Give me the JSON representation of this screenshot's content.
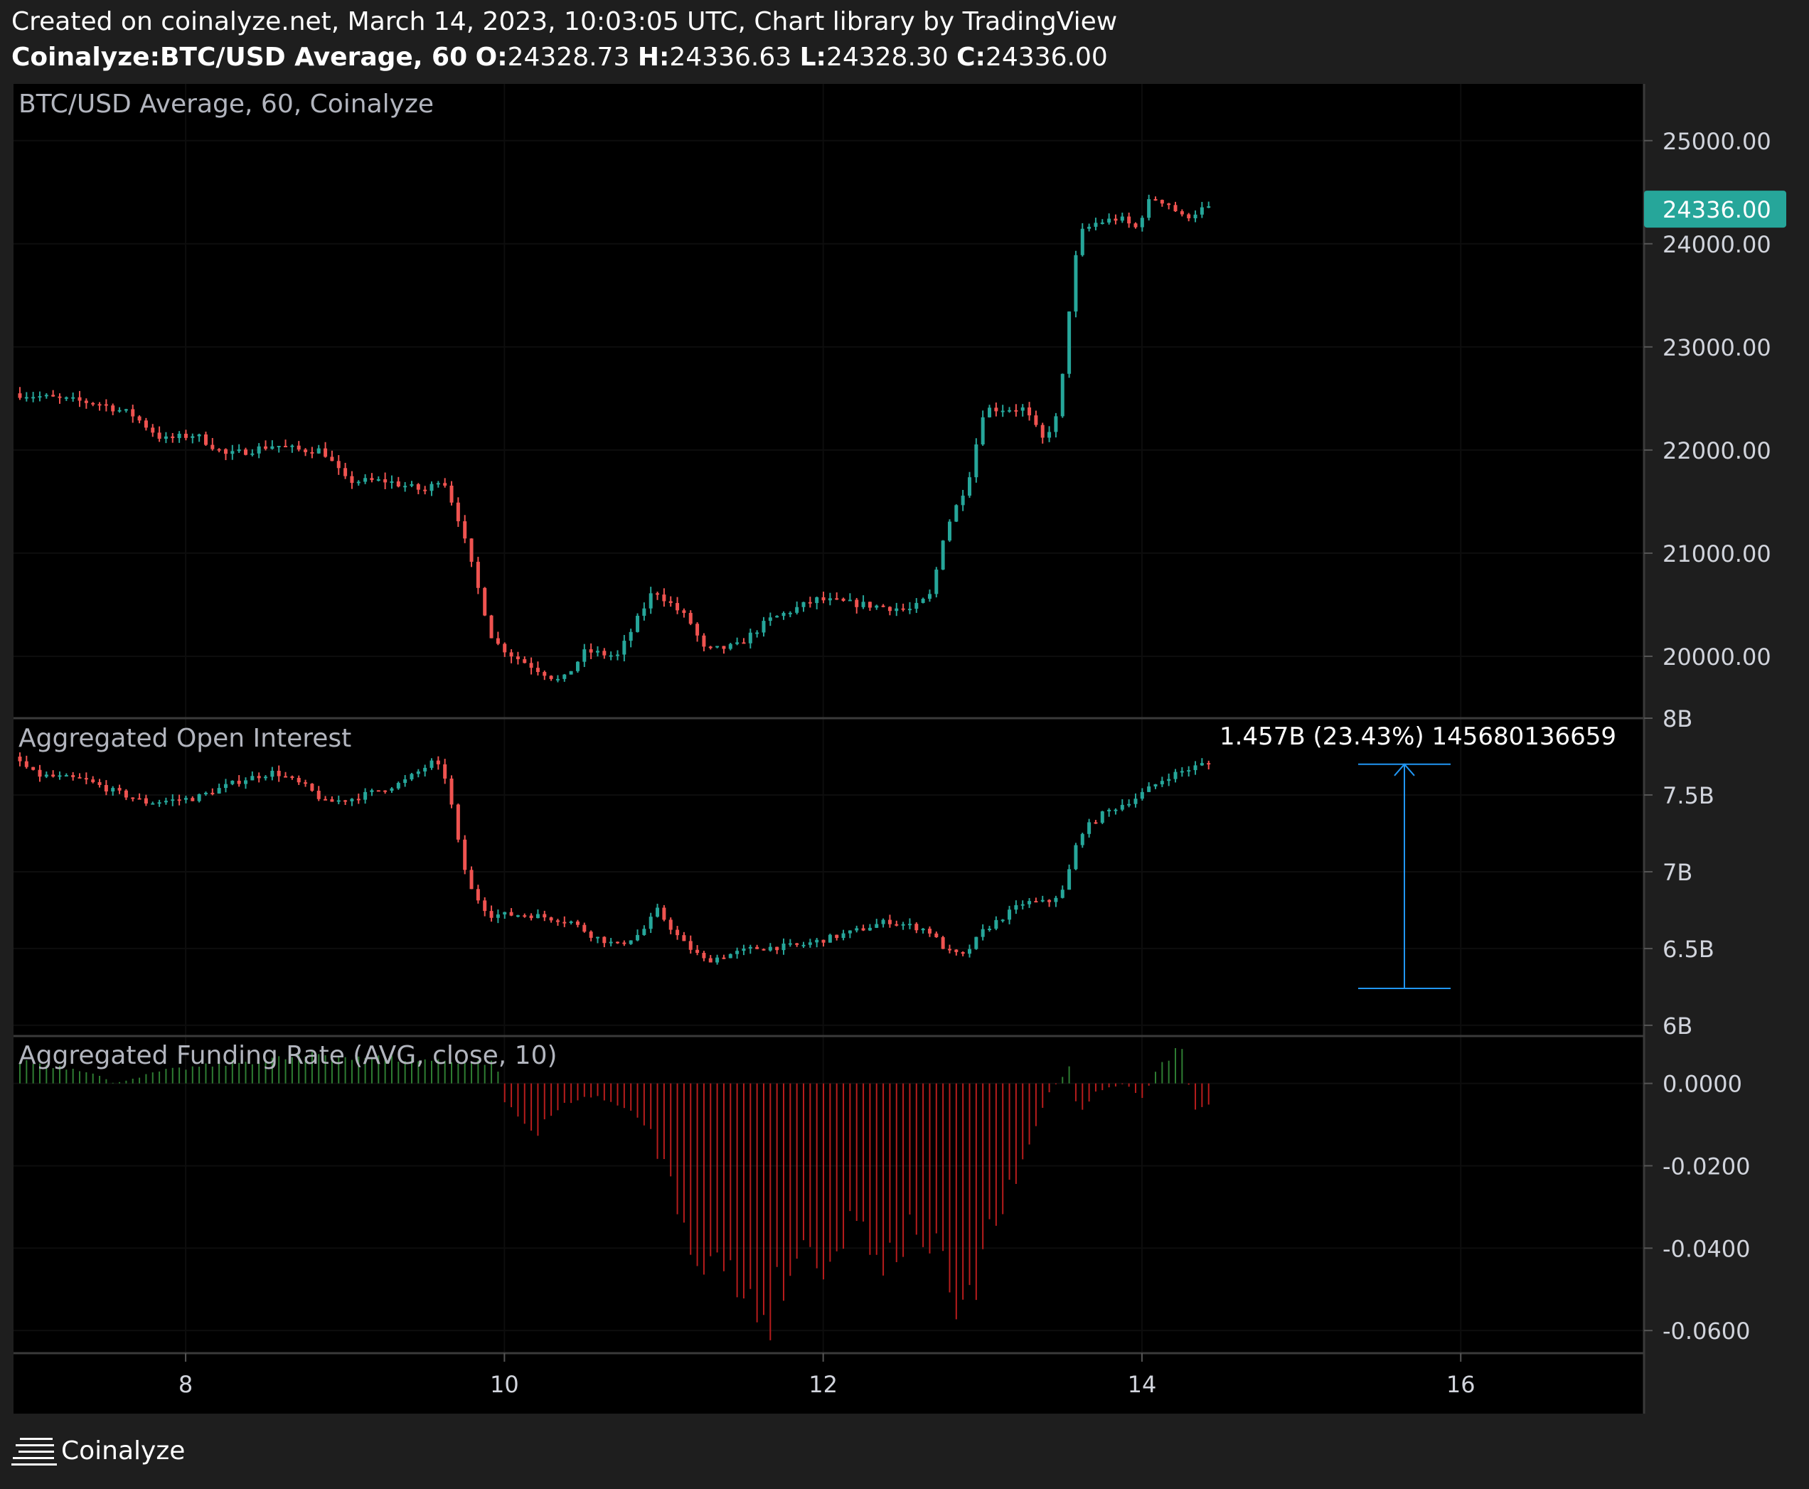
{
  "header": {
    "created": "Created on coinalyze.net, March 14, 2023, 10:03:05 UTC, Chart library by TradingView",
    "symbol": "Coinalyze:BTC/USD Average, 60",
    "o_label": "O:",
    "o_value": "24328.73",
    "h_label": "H:",
    "h_value": "24336.63",
    "l_label": "L:",
    "l_value": "24328.30",
    "c_label": "C:",
    "c_value": "24336.00"
  },
  "footer": {
    "brand": "Coinalyze",
    "icon": "coinalyze-menu-icon"
  },
  "colors": {
    "up": "#26a69a",
    "down": "#ef5350",
    "fund_pos": "#2e7d32",
    "fund_neg": "#b71c1c",
    "measure": "#2196f3",
    "price_tag": "#26a69a"
  },
  "chart_data": [
    {
      "type": "candlestick",
      "title": "BTC/USD Average, 60, Coinalyze",
      "ylim": [
        19400,
        25550
      ],
      "yticks": [
        "25000.00",
        "24000.00",
        "23000.00",
        "22000.00",
        "21000.00",
        "20000.00"
      ],
      "last_price": "24336.00",
      "anchors": [
        [
          6.96,
          22550
        ],
        [
          7.5,
          22450
        ],
        [
          7.7,
          22350
        ],
        [
          7.9,
          22100
        ],
        [
          8.1,
          22150
        ],
        [
          8.3,
          21950
        ],
        [
          8.6,
          22050
        ],
        [
          8.75,
          22000
        ],
        [
          8.9,
          22000
        ],
        [
          9.05,
          21700
        ],
        [
          9.3,
          21700
        ],
        [
          9.55,
          21600
        ],
        [
          9.65,
          21750
        ],
        [
          9.75,
          21350
        ],
        [
          9.85,
          20800
        ],
        [
          9.97,
          20150
        ],
        [
          10.1,
          20000
        ],
        [
          10.4,
          19750
        ],
        [
          10.55,
          20050
        ],
        [
          10.75,
          20000
        ],
        [
          10.98,
          20650
        ],
        [
          11.2,
          20350
        ],
        [
          11.3,
          20050
        ],
        [
          11.5,
          20100
        ],
        [
          11.7,
          20350
        ],
        [
          12.0,
          20550
        ],
        [
          12.3,
          20500
        ],
        [
          12.6,
          20450
        ],
        [
          12.72,
          20600
        ],
        [
          12.8,
          21200
        ],
        [
          12.95,
          21700
        ],
        [
          13.05,
          22400
        ],
        [
          13.3,
          22400
        ],
        [
          13.42,
          22100
        ],
        [
          13.52,
          22350
        ],
        [
          13.6,
          23600
        ],
        [
          13.65,
          24100
        ],
        [
          13.75,
          24200
        ],
        [
          13.9,
          24250
        ],
        [
          14.0,
          24150
        ],
        [
          14.1,
          24450
        ],
        [
          14.2,
          24400
        ],
        [
          14.3,
          24250
        ],
        [
          14.42,
          24336
        ]
      ]
    },
    {
      "type": "candlestick",
      "title": "Aggregated Open Interest",
      "unit": "B",
      "ylim": [
        5.93,
        8.0
      ],
      "yticks": [
        "8B",
        "7.5B",
        "7B",
        "6.5B",
        "6B"
      ],
      "anchors": [
        [
          6.96,
          7.75
        ],
        [
          7.1,
          7.63
        ],
        [
          7.4,
          7.6
        ],
        [
          7.6,
          7.52
        ],
        [
          7.8,
          7.45
        ],
        [
          8.1,
          7.48
        ],
        [
          8.4,
          7.6
        ],
        [
          8.6,
          7.65
        ],
        [
          8.8,
          7.55
        ],
        [
          8.92,
          7.45
        ],
        [
          9.1,
          7.48
        ],
        [
          9.4,
          7.58
        ],
        [
          9.6,
          7.72
        ],
        [
          9.68,
          7.6
        ],
        [
          9.75,
          7.2
        ],
        [
          9.82,
          6.9
        ],
        [
          9.95,
          6.72
        ],
        [
          10.2,
          6.72
        ],
        [
          10.45,
          6.68
        ],
        [
          10.6,
          6.58
        ],
        [
          10.75,
          6.52
        ],
        [
          10.9,
          6.6
        ],
        [
          11.0,
          6.75
        ],
        [
          11.15,
          6.55
        ],
        [
          11.3,
          6.42
        ],
        [
          11.6,
          6.5
        ],
        [
          11.9,
          6.52
        ],
        [
          12.2,
          6.6
        ],
        [
          12.45,
          6.68
        ],
        [
          12.7,
          6.62
        ],
        [
          12.82,
          6.48
        ],
        [
          12.92,
          6.45
        ],
        [
          13.05,
          6.62
        ],
        [
          13.3,
          6.8
        ],
        [
          13.45,
          6.8
        ],
        [
          13.55,
          6.88
        ],
        [
          13.65,
          7.25
        ],
        [
          13.8,
          7.38
        ],
        [
          14.0,
          7.48
        ],
        [
          14.2,
          7.62
        ],
        [
          14.42,
          7.7
        ]
      ],
      "measure": {
        "label": "1.457B (23.43%) 145680136659",
        "from": 6.24,
        "to": 7.7
      }
    },
    {
      "type": "bar",
      "title": "Aggregated Funding Rate (AVG, close, 10)",
      "ylim": [
        -0.0655,
        0.0115
      ],
      "yticks": [
        "0.0000",
        "-0.0200",
        "-0.0400",
        "-0.0600"
      ],
      "anchors": [
        [
          6.96,
          0.0055
        ],
        [
          7.4,
          0.003
        ],
        [
          7.55,
          0.0
        ],
        [
          7.85,
          0.003
        ],
        [
          8.3,
          0.005
        ],
        [
          8.9,
          0.007
        ],
        [
          9.3,
          0.006
        ],
        [
          9.95,
          0.005
        ],
        [
          10.0,
          -0.004
        ],
        [
          10.2,
          -0.013
        ],
        [
          10.35,
          -0.005
        ],
        [
          10.6,
          -0.003
        ],
        [
          10.9,
          -0.01
        ],
        [
          11.05,
          -0.025
        ],
        [
          11.2,
          -0.04
        ],
        [
          11.45,
          -0.048
        ],
        [
          11.65,
          -0.056
        ],
        [
          11.85,
          -0.04
        ],
        [
          12.05,
          -0.042
        ],
        [
          12.2,
          -0.032
        ],
        [
          12.4,
          -0.043
        ],
        [
          12.6,
          -0.034
        ],
        [
          12.78,
          -0.048
        ],
        [
          12.88,
          -0.062
        ],
        [
          13.0,
          -0.04
        ],
        [
          13.2,
          -0.025
        ],
        [
          13.3,
          -0.015
        ],
        [
          13.4,
          -0.003
        ],
        [
          13.55,
          0.004
        ],
        [
          13.6,
          -0.008
        ],
        [
          13.7,
          -0.002
        ],
        [
          13.9,
          0.0
        ],
        [
          14.0,
          -0.004
        ],
        [
          14.1,
          0.004
        ],
        [
          14.25,
          0.009
        ],
        [
          14.32,
          -0.006
        ],
        [
          14.42,
          -0.005
        ]
      ]
    }
  ],
  "x_axis": {
    "ticks": [
      "8",
      "10",
      "12",
      "14",
      "16"
    ],
    "values": [
      8,
      10,
      12,
      14,
      16
    ],
    "xlim": [
      6.92,
      17.15
    ]
  }
}
